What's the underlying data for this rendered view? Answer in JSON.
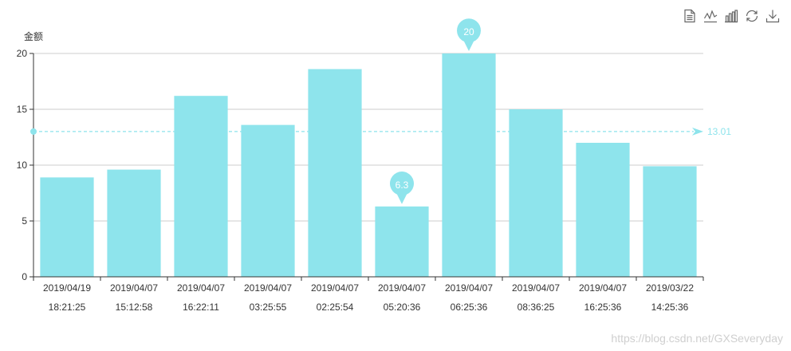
{
  "toolbox": {
    "icons": [
      "data-view-icon",
      "line-chart-icon",
      "bar-chart-icon",
      "restore-icon",
      "download-icon"
    ]
  },
  "watermark": "https://blog.csdn.net/GXSeveryday",
  "colors": {
    "bar": "#8ee4ec",
    "marker": "#8ee4ec",
    "axis": "#333333",
    "grid": "#cccccc",
    "avgline": "#8ee4ec",
    "avglabel": "#8ee4ec"
  },
  "chart_data": {
    "type": "bar",
    "ylabel": "金额",
    "ylim": [
      0,
      20
    ],
    "yticks": [
      0,
      5,
      10,
      15,
      20
    ],
    "categories": [
      [
        "2019/04/19",
        "18:21:25"
      ],
      [
        "2019/04/07",
        "15:12:58"
      ],
      [
        "2019/04/07",
        "16:22:11"
      ],
      [
        "2019/04/07",
        "03:25:55"
      ],
      [
        "2019/04/07",
        "02:25:54"
      ],
      [
        "2019/04/07",
        "05:20:36"
      ],
      [
        "2019/04/07",
        "06:25:36"
      ],
      [
        "2019/04/07",
        "08:36:25"
      ],
      [
        "2019/04/07",
        "16:25:36"
      ],
      [
        "2019/03/22",
        "14:25:36"
      ]
    ],
    "values": [
      8.9,
      9.6,
      16.2,
      13.6,
      18.6,
      6.3,
      20,
      15,
      12,
      9.9
    ],
    "markers": [
      {
        "index": 6,
        "label": "20"
      },
      {
        "index": 5,
        "label": "6.3"
      }
    ],
    "average": {
      "value": 13.01,
      "label": "13.01"
    },
    "grid": true
  }
}
